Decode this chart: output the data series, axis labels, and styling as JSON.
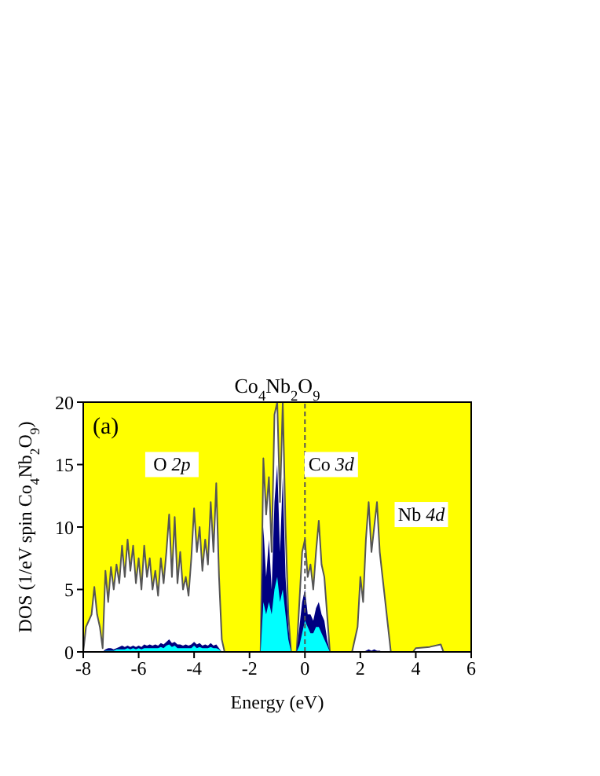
{
  "chart_data": {
    "type": "area",
    "title": "Co$_{4}$Nb$_{2}$O$_{9}$",
    "xlabel": "Energy (eV)",
    "ylabel": "DOS (1/eV spin Co$_{4}$Nb$_{2}$O$_{9}$)",
    "x": [
      -8,
      -7.9,
      -7.8,
      -7.7,
      -7.6,
      -7.5,
      -7.4,
      -7.3,
      -7.2,
      -7.1,
      -7,
      -6.9,
      -6.8,
      -6.7,
      -6.6,
      -6.5,
      -6.4,
      -6.3,
      -6.2,
      -6.1,
      -6,
      -5.9,
      -5.8,
      -5.7,
      -5.6,
      -5.5,
      -5.4,
      -5.3,
      -5.2,
      -5.1,
      -5,
      -4.9,
      -4.8,
      -4.7,
      -4.6,
      -4.5,
      -4.4,
      -4.3,
      -4.2,
      -4.1,
      -4,
      -3.9,
      -3.8,
      -3.7,
      -3.6,
      -3.5,
      -3.4,
      -3.3,
      -3.2,
      -3.1,
      -3,
      -2.9,
      -1.7,
      -1.6,
      -1.5,
      -1.4,
      -1.3,
      -1.2,
      -1.1,
      -1,
      -0.9,
      -0.8,
      -0.7,
      -0.6,
      -0.5,
      -0.3,
      -0.2,
      -0.1,
      0,
      0.1,
      0.2,
      0.3,
      0.4,
      0.5,
      0.6,
      0.7,
      0.8,
      0.9,
      1.7,
      1.9,
      2,
      2.1,
      2.2,
      2.3,
      2.4,
      2.5,
      2.6,
      2.7,
      2.8,
      2.9,
      3,
      3.1,
      3.9,
      4,
      4.5,
      4.9,
      5,
      6
    ],
    "series": [
      {
        "color": "#555555",
        "values": [
          0,
          2,
          2.5,
          3,
          5.2,
          3,
          2,
          0.3,
          6.5,
          4,
          6.8,
          5,
          7,
          5.5,
          8.5,
          6,
          9,
          6.5,
          8.5,
          5.5,
          7.5,
          5,
          8.5,
          6,
          7.5,
          5,
          6.5,
          4.5,
          7.5,
          5.5,
          8,
          11,
          6,
          10.8,
          5.5,
          8,
          5,
          6,
          4.5,
          7.5,
          11.5,
          8,
          10,
          6.5,
          9,
          7,
          12,
          8,
          13.5,
          6,
          1,
          0,
          0,
          0,
          15.5,
          11,
          14,
          8,
          19,
          20,
          12,
          20,
          10,
          3,
          0,
          0,
          4,
          8,
          9,
          6,
          7,
          5,
          8,
          10.5,
          7,
          6,
          3,
          0,
          0,
          2,
          6,
          4,
          9,
          12,
          8,
          10,
          12,
          8,
          6,
          4,
          2,
          0,
          0,
          0.3,
          0.4,
          0.6,
          0,
          0
        ]
      },
      {
        "color": "#000080",
        "values": [
          0,
          0,
          0,
          0,
          0,
          0,
          0,
          0,
          0.2,
          0.3,
          0.3,
          0.2,
          0.3,
          0.4,
          0.5,
          0.4,
          0.5,
          0.4,
          0.5,
          0.4,
          0.5,
          0.4,
          0.6,
          0.5,
          0.6,
          0.5,
          0.6,
          0.5,
          0.7,
          0.6,
          0.8,
          1,
          0.7,
          0.8,
          0.6,
          0.6,
          0.5,
          0.6,
          0.5,
          0.6,
          0.8,
          0.6,
          0.7,
          0.5,
          0.6,
          0.5,
          0.7,
          0.5,
          0.6,
          0.3,
          0,
          0,
          0,
          0,
          10,
          6,
          9,
          5,
          12,
          15,
          8,
          14,
          6,
          2,
          0,
          0,
          2,
          4,
          5,
          3,
          3,
          2.5,
          3.5,
          4,
          3,
          2.5,
          1,
          0,
          0,
          0,
          0,
          0,
          0.1,
          0.2,
          0.1,
          0.2,
          0.1,
          0.1,
          0,
          0,
          0,
          0,
          0,
          0,
          0,
          0,
          0,
          0
        ]
      },
      {
        "color": "#00ffff",
        "values": [
          0,
          0,
          0,
          0,
          0,
          0,
          0,
          0,
          0.1,
          0.1,
          0.1,
          0.1,
          0.2,
          0.2,
          0.2,
          0.2,
          0.3,
          0.2,
          0.3,
          0.2,
          0.3,
          0.2,
          0.3,
          0.3,
          0.3,
          0.3,
          0.3,
          0.3,
          0.4,
          0.3,
          0.5,
          0.6,
          0.4,
          0.5,
          0.3,
          0.3,
          0.3,
          0.3,
          0.3,
          0.3,
          0.5,
          0.3,
          0.4,
          0.3,
          0.3,
          0.3,
          0.4,
          0.3,
          0.3,
          0.2,
          0,
          0,
          0,
          0,
          4,
          3,
          4,
          3,
          5,
          6,
          4,
          5,
          3,
          1,
          0,
          0,
          0.5,
          1.5,
          2.5,
          2,
          1.5,
          1.5,
          2,
          2,
          1.5,
          1,
          0.5,
          0,
          0,
          0,
          0,
          0,
          0,
          0,
          0,
          0,
          0,
          0,
          0,
          0,
          0,
          0,
          0,
          0,
          0,
          0,
          0,
          0
        ]
      }
    ],
    "xlim": [
      -8,
      6
    ],
    "xticks": [
      -8,
      -6,
      -4,
      -2,
      0,
      2,
      4,
      6
    ],
    "ylim": [
      0,
      20
    ],
    "yticks": [
      0,
      5,
      10,
      15,
      20
    ],
    "ref_lines": [
      {
        "axis": "x",
        "value": 0,
        "color": "#555555",
        "line_style": "dashed"
      }
    ],
    "annotations": [
      "(a)",
      "O 2p",
      "Co 3d",
      "Nb 4d"
    ],
    "grid": false
  }
}
